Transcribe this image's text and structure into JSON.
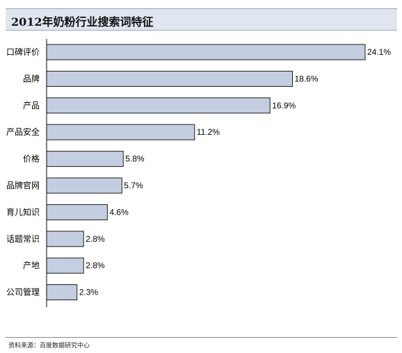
{
  "header": {
    "title": "2012年奶粉行业搜索词特征"
  },
  "footer": {
    "source": "资料来源：百度数据研究中心"
  },
  "chart_data": {
    "type": "bar",
    "orientation": "horizontal",
    "title": "2012年奶粉行业搜索词特征",
    "categories": [
      "口碑评价",
      "品牌",
      "产品",
      "产品安全",
      "价格",
      "品牌官网",
      "育儿知识",
      "话题常识",
      "产地",
      "公司管理"
    ],
    "values": [
      24.1,
      18.6,
      16.9,
      11.2,
      5.8,
      5.7,
      4.6,
      2.8,
      2.8,
      2.3
    ],
    "value_labels": [
      "24.1%",
      "18.6%",
      "16.9%",
      "11.2%",
      "5.8%",
      "5.7%",
      "4.6%",
      "2.8%",
      "2.8%",
      "2.3%"
    ],
    "xlabel": "",
    "ylabel": "",
    "xlim": [
      0,
      24.1
    ],
    "grid": false,
    "legend": "none",
    "colors": {
      "bar_fill": "#c5cee0",
      "bar_stroke": "#1a1a1a",
      "axis": "#000000"
    }
  }
}
